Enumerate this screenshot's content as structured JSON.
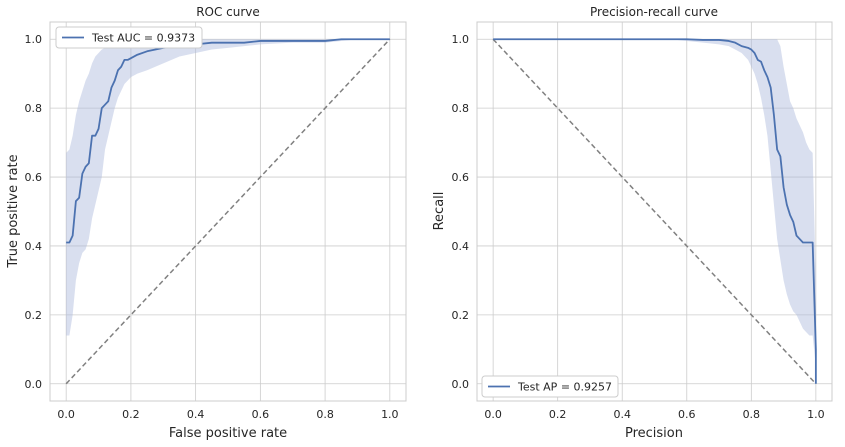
{
  "colors": {
    "line": "#4c72b0",
    "band": "#aab9dc",
    "diagonal": "#808080",
    "grid": "#cccccc"
  },
  "chart_data": [
    {
      "type": "line",
      "title": "ROC curve",
      "xlabel": "False positive rate",
      "ylabel": "True positive rate",
      "xlim": [
        -0.05,
        1.05
      ],
      "ylim": [
        -0.05,
        1.05
      ],
      "xticks": [
        "0.0",
        "0.2",
        "0.4",
        "0.6",
        "0.8",
        "1.0"
      ],
      "yticks": [
        "0.0",
        "0.2",
        "0.4",
        "0.6",
        "0.8",
        "1.0"
      ],
      "grid": true,
      "legend_position": "upper-left",
      "series": [
        {
          "name": "Test AUC = 0.9373",
          "x": [
            0.0,
            0.01,
            0.02,
            0.03,
            0.04,
            0.05,
            0.06,
            0.07,
            0.08,
            0.09,
            0.1,
            0.11,
            0.12,
            0.13,
            0.14,
            0.15,
            0.16,
            0.17,
            0.18,
            0.19,
            0.2,
            0.22,
            0.25,
            0.3,
            0.35,
            0.4,
            0.45,
            0.5,
            0.55,
            0.6,
            0.7,
            0.8,
            0.85,
            0.9,
            1.0
          ],
          "y": [
            0.41,
            0.41,
            0.43,
            0.53,
            0.54,
            0.61,
            0.63,
            0.64,
            0.72,
            0.72,
            0.74,
            0.8,
            0.81,
            0.82,
            0.86,
            0.88,
            0.91,
            0.92,
            0.94,
            0.94,
            0.945,
            0.955,
            0.965,
            0.975,
            0.98,
            0.985,
            0.99,
            0.99,
            0.99,
            0.995,
            0.995,
            0.995,
            1.0,
            1.0,
            1.0
          ],
          "lower": [
            0.14,
            0.14,
            0.2,
            0.3,
            0.35,
            0.38,
            0.39,
            0.42,
            0.48,
            0.52,
            0.56,
            0.6,
            0.68,
            0.72,
            0.76,
            0.8,
            0.83,
            0.85,
            0.87,
            0.88,
            0.89,
            0.9,
            0.91,
            0.93,
            0.95,
            0.96,
            0.97,
            0.975,
            0.98,
            0.985,
            0.99,
            0.99,
            0.995,
            1.0,
            1.0
          ],
          "upper": [
            0.67,
            0.68,
            0.72,
            0.78,
            0.82,
            0.85,
            0.88,
            0.9,
            0.93,
            0.95,
            0.96,
            0.97,
            0.975,
            0.98,
            0.985,
            0.99,
            0.99,
            0.995,
            1.0,
            1.0,
            1.0,
            1.0,
            1.0,
            1.0,
            1.0,
            1.0,
            1.0,
            1.0,
            1.0,
            1.0,
            1.0,
            1.0,
            1.0,
            1.0,
            1.0
          ]
        }
      ],
      "reference_line": {
        "x": [
          0,
          1
        ],
        "y": [
          0,
          1
        ]
      }
    },
    {
      "type": "line",
      "title": "Precision-recall curve",
      "xlabel": "Precision",
      "ylabel": "Recall",
      "xlim": [
        -0.05,
        1.05
      ],
      "ylim": [
        -0.05,
        1.05
      ],
      "xticks": [
        "0.0",
        "0.2",
        "0.4",
        "0.6",
        "0.8",
        "1.0"
      ],
      "yticks": [
        "0.0",
        "0.2",
        "0.4",
        "0.6",
        "0.8",
        "1.0"
      ],
      "grid": true,
      "legend_position": "lower-left",
      "series": [
        {
          "name": "Test AP = 0.9257",
          "x": [
            0.0,
            0.1,
            0.2,
            0.3,
            0.4,
            0.5,
            0.55,
            0.6,
            0.65,
            0.7,
            0.73,
            0.75,
            0.77,
            0.79,
            0.8,
            0.81,
            0.82,
            0.83,
            0.84,
            0.85,
            0.86,
            0.87,
            0.88,
            0.89,
            0.9,
            0.91,
            0.92,
            0.93,
            0.94,
            0.95,
            0.96,
            0.97,
            0.98,
            0.99,
            1.0,
            1.0
          ],
          "y": [
            1.0,
            1.0,
            1.0,
            1.0,
            1.0,
            1.0,
            1.0,
            1.0,
            0.998,
            0.998,
            0.995,
            0.99,
            0.98,
            0.975,
            0.97,
            0.96,
            0.94,
            0.935,
            0.91,
            0.89,
            0.86,
            0.78,
            0.68,
            0.66,
            0.57,
            0.52,
            0.49,
            0.47,
            0.43,
            0.42,
            0.41,
            0.41,
            0.41,
            0.41,
            0.1,
            0.0
          ],
          "lower": [
            1.0,
            1.0,
            1.0,
            1.0,
            1.0,
            1.0,
            1.0,
            0.995,
            0.99,
            0.985,
            0.98,
            0.97,
            0.96,
            0.94,
            0.92,
            0.9,
            0.87,
            0.83,
            0.78,
            0.72,
            0.62,
            0.52,
            0.42,
            0.36,
            0.3,
            0.26,
            0.23,
            0.21,
            0.2,
            0.18,
            0.16,
            0.15,
            0.14,
            0.14,
            0.05,
            0.0
          ],
          "upper": [
            1.0,
            1.0,
            1.0,
            1.0,
            1.0,
            1.0,
            1.0,
            1.0,
            1.0,
            1.0,
            1.0,
            1.0,
            1.0,
            1.0,
            1.0,
            1.0,
            1.0,
            1.0,
            1.0,
            1.0,
            1.0,
            1.0,
            1.0,
            0.98,
            0.92,
            0.87,
            0.82,
            0.8,
            0.77,
            0.75,
            0.73,
            0.7,
            0.68,
            0.67,
            0.3,
            0.0
          ]
        }
      ],
      "reference_line": {
        "x": [
          0,
          1
        ],
        "y": [
          1,
          0
        ]
      }
    }
  ]
}
